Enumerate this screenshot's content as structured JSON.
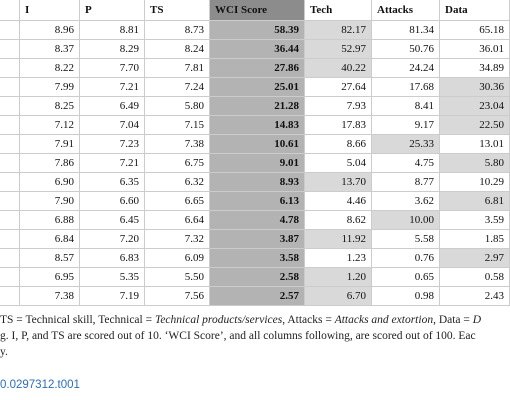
{
  "table": {
    "header": [
      "I",
      "P",
      "TS",
      "WCI Score",
      "Tech",
      "Attacks",
      "Data"
    ],
    "rows": [
      [
        "8.96",
        "8.81",
        "8.73",
        "58.39",
        "82.17",
        "81.34",
        "65.18"
      ],
      [
        "8.37",
        "8.29",
        "8.24",
        "36.44",
        "52.97",
        "50.76",
        "36.01"
      ],
      [
        "8.22",
        "7.70",
        "7.81",
        "27.86",
        "40.22",
        "24.24",
        "34.89"
      ],
      [
        "7.99",
        "7.21",
        "7.24",
        "25.01",
        "27.64",
        "17.68",
        "30.36"
      ],
      [
        "8.25",
        "6.49",
        "5.80",
        "21.28",
        "7.93",
        "8.41",
        "23.04"
      ],
      [
        "7.12",
        "7.04",
        "7.15",
        "14.83",
        "17.83",
        "9.17",
        "22.50"
      ],
      [
        "7.91",
        "7.23",
        "7.38",
        "10.61",
        "8.66",
        "25.33",
        "13.01"
      ],
      [
        "7.86",
        "7.21",
        "6.75",
        "9.01",
        "5.04",
        "4.75",
        "5.80"
      ],
      [
        "6.90",
        "6.35",
        "6.32",
        "8.93",
        "13.70",
        "8.77",
        "10.29"
      ],
      [
        "7.90",
        "6.60",
        "6.65",
        "6.13",
        "4.46",
        "3.62",
        "6.81"
      ],
      [
        "6.88",
        "6.45",
        "6.64",
        "4.78",
        "8.62",
        "10.00",
        "3.59"
      ],
      [
        "6.84",
        "7.20",
        "7.32",
        "3.87",
        "11.92",
        "5.58",
        "1.85"
      ],
      [
        "8.57",
        "6.83",
        "6.09",
        "3.58",
        "1.23",
        "0.76",
        "2.97"
      ],
      [
        "6.95",
        "5.35",
        "5.50",
        "2.58",
        "1.20",
        "0.65",
        "0.58"
      ],
      [
        "7.38",
        "7.19",
        "7.56",
        "2.57",
        "6.70",
        "0.98",
        "2.43"
      ]
    ]
  },
  "footnote": {
    "line1": [
      "TS = Technical skill, Technical = ",
      "Technical products/services",
      ", Attacks = ",
      "Attacks and extortion",
      ", Data = ",
      "D"
    ],
    "line2": "g. I, P, and TS are scored out of 10. ‘WCI Score’, and all columns following, are scored out of 100. Eac",
    "line3": "y."
  },
  "link": "0.0297312.t001"
}
